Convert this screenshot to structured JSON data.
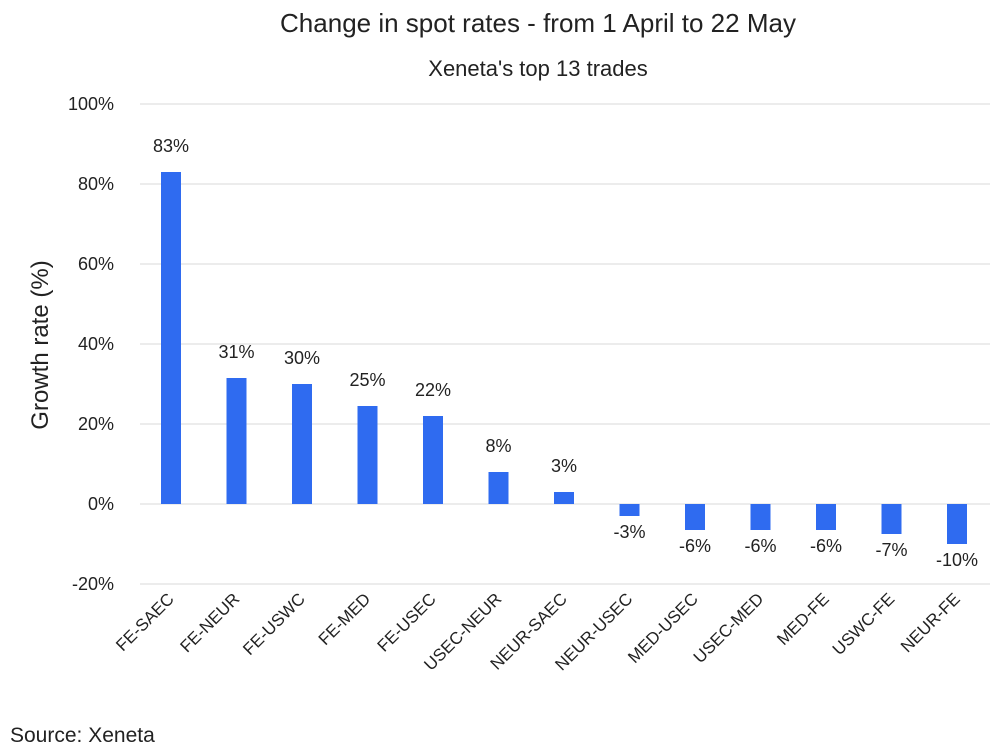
{
  "chart_data": {
    "type": "bar",
    "title": "Change in spot rates - from 1 April to 22 May",
    "subtitle": "Xeneta's top 13 trades",
    "ylabel": "Growth rate (%)",
    "xlabel": "",
    "ylim": [
      -20,
      100
    ],
    "yticks": [
      -20,
      0,
      20,
      40,
      60,
      80,
      100
    ],
    "ytick_labels": [
      "-20%",
      "0%",
      "20%",
      "40%",
      "60%",
      "80%",
      "100%"
    ],
    "categories": [
      "FE-SAEC",
      "FE-NEUR",
      "FE-USWC",
      "FE-MED",
      "FE-USEC",
      "USEC-NEUR",
      "NEUR-SAEC",
      "NEUR-USEC",
      "MED-USEC",
      "USEC-MED",
      "MED-FE",
      "USWC-FE",
      "NEUR-FE"
    ],
    "values": [
      83,
      31.5,
      30,
      24.5,
      22,
      8,
      3,
      -3,
      -6.5,
      -6.5,
      -6.5,
      -7.5,
      -10
    ],
    "data_labels": [
      "83%",
      "31%",
      "30%",
      "25%",
      "22%",
      "8%",
      "3%",
      "-3%",
      "-6%",
      "-6%",
      "-6%",
      "-7%",
      "-10%"
    ],
    "grid": true,
    "legend": false,
    "bar_color": "#2f6bf0",
    "source": "Source: Xeneta"
  }
}
